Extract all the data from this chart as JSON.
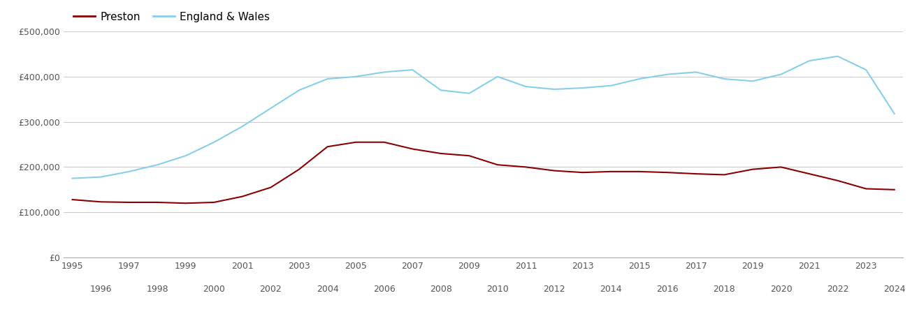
{
  "years": [
    1995,
    1996,
    1997,
    1998,
    1999,
    2000,
    2001,
    2002,
    2003,
    2004,
    2005,
    2006,
    2007,
    2008,
    2009,
    2010,
    2011,
    2012,
    2013,
    2014,
    2015,
    2016,
    2017,
    2018,
    2019,
    2020,
    2021,
    2022,
    2023,
    2024
  ],
  "preston": [
    128000,
    123000,
    122000,
    122000,
    120000,
    122000,
    135000,
    155000,
    195000,
    245000,
    255000,
    255000,
    240000,
    230000,
    225000,
    205000,
    200000,
    192000,
    188000,
    190000,
    190000,
    188000,
    185000,
    183000,
    195000,
    200000,
    185000,
    170000,
    152000,
    150000
  ],
  "england_wales": [
    175000,
    178000,
    190000,
    205000,
    225000,
    255000,
    290000,
    330000,
    370000,
    395000,
    400000,
    410000,
    415000,
    370000,
    363000,
    400000,
    378000,
    372000,
    375000,
    380000,
    395000,
    405000,
    410000,
    395000,
    390000,
    405000,
    435000,
    445000,
    415000,
    318000
  ],
  "preston_color": "#8b0000",
  "ew_color": "#87ceeb",
  "background_color": "#ffffff",
  "grid_color": "#cccccc",
  "ylim": [
    0,
    500000
  ],
  "yticks": [
    0,
    100000,
    200000,
    300000,
    400000,
    500000
  ],
  "ytick_labels": [
    "£0",
    "£100,000",
    "£200,000",
    "£300,000",
    "£400,000",
    "£500,000"
  ],
  "odd_years": [
    1995,
    1997,
    1999,
    2001,
    2003,
    2005,
    2007,
    2009,
    2011,
    2013,
    2015,
    2017,
    2019,
    2021,
    2023
  ],
  "even_years": [
    1996,
    1998,
    2000,
    2002,
    2004,
    2006,
    2008,
    2010,
    2012,
    2014,
    2016,
    2018,
    2020,
    2022,
    2024
  ],
  "legend_labels": [
    "Preston",
    "England & Wales"
  ],
  "line_width": 1.5
}
